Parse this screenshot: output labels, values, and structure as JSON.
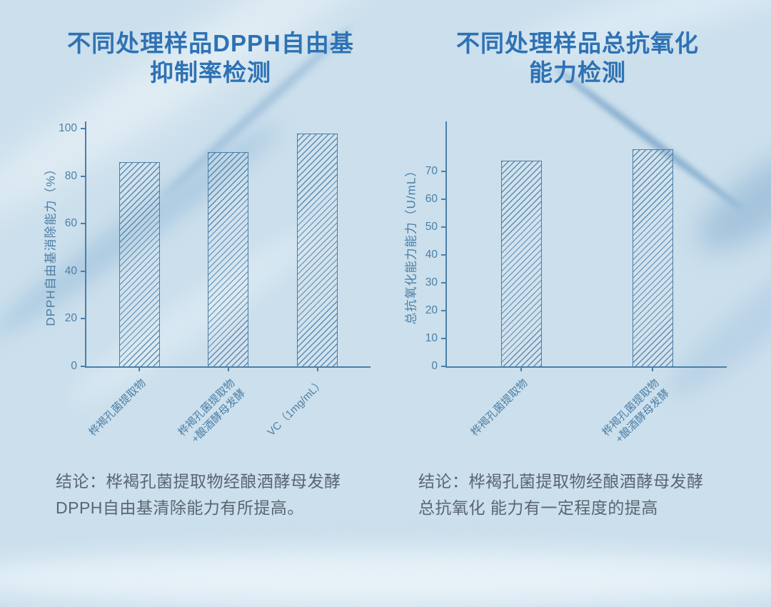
{
  "palette": {
    "background": "#cbdfec",
    "title_blue": "#2e72b4",
    "chart_blue": "#4d7fa6",
    "conclusion_gray": "#5a6671"
  },
  "chart_data": [
    {
      "type": "bar",
      "title_line1": "不同处理样品DPPH自由基",
      "title_line2": "抑制率检测",
      "ylabel": "DPPH自由基消除能力（%）",
      "categories": [
        "桦褐孔菌提取物",
        "桦褐孔菌提取物\n+酿酒酵母发酵",
        "VC（1mg/mL）"
      ],
      "values": [
        86,
        90,
        98
      ],
      "yticks": [
        0,
        20,
        40,
        60,
        80,
        100
      ],
      "ymax": 103,
      "ylim": [
        0,
        103
      ],
      "grid": false,
      "hatch": "diagonal",
      "legend": "none",
      "conclusion_line1": "结论：桦褐孔菌提取物经酿酒酵母发酵",
      "conclusion_line2": "DPPH自由基清除能力有所提高。"
    },
    {
      "type": "bar",
      "title_line1": "不同处理样品总抗氧化",
      "title_line2": "能力检测",
      "ylabel": "总抗氧化能力能力（U/mL）",
      "categories": [
        "桦褐孔菌提取物",
        "桦褐孔菌提取物\n+酿酒酵母发酵"
      ],
      "values": [
        74,
        78
      ],
      "yticks": [
        0,
        10,
        20,
        30,
        40,
        50,
        60,
        70
      ],
      "ymax": 88,
      "ylim": [
        0,
        88
      ],
      "grid": false,
      "hatch": "diagonal",
      "legend": "none",
      "conclusion_line1": "结论：桦褐孔菌提取物经酿酒酵母发酵",
      "conclusion_line2": "总抗氧化 能力有一定程度的提高"
    }
  ]
}
